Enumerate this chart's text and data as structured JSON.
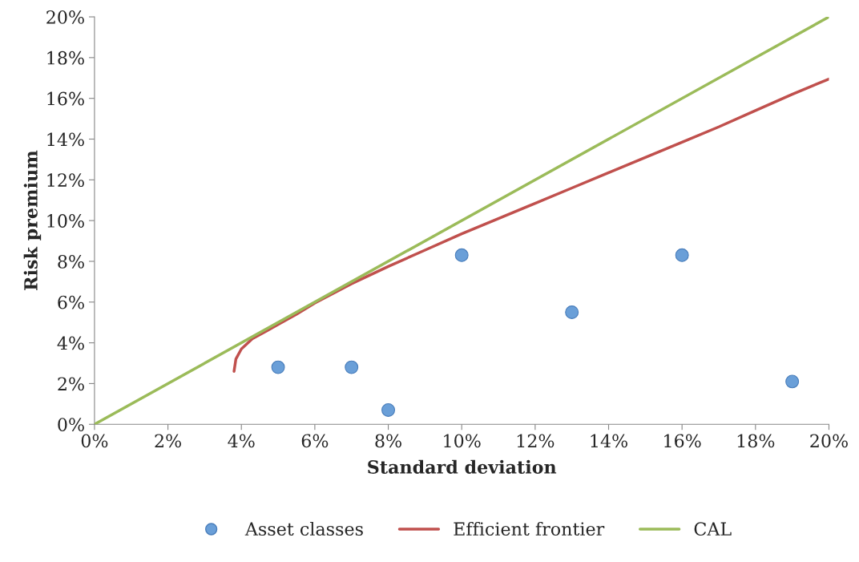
{
  "chart_data": {
    "type": "scatter",
    "xlabel": "Standard deviation",
    "ylabel": "Risk premium",
    "xlim": [
      0,
      20
    ],
    "ylim": [
      0,
      20
    ],
    "xticks": [
      {
        "value": 0,
        "label": "0%"
      },
      {
        "value": 2,
        "label": "2%"
      },
      {
        "value": 4,
        "label": "4%"
      },
      {
        "value": 6,
        "label": "6%"
      },
      {
        "value": 8,
        "label": "8%"
      },
      {
        "value": 10,
        "label": "10%"
      },
      {
        "value": 12,
        "label": "12%"
      },
      {
        "value": 14,
        "label": "14%"
      },
      {
        "value": 16,
        "label": "16%"
      },
      {
        "value": 18,
        "label": "18%"
      },
      {
        "value": 20,
        "label": "20%"
      }
    ],
    "yticks": [
      {
        "value": 0,
        "label": "0%"
      },
      {
        "value": 2,
        "label": "2%"
      },
      {
        "value": 4,
        "label": "4%"
      },
      {
        "value": 6,
        "label": "6%"
      },
      {
        "value": 8,
        "label": "8%"
      },
      {
        "value": 10,
        "label": "10%"
      },
      {
        "value": 12,
        "label": "12%"
      },
      {
        "value": 14,
        "label": "14%"
      },
      {
        "value": 16,
        "label": "16%"
      },
      {
        "value": 18,
        "label": "18%"
      },
      {
        "value": 20,
        "label": "20%"
      }
    ],
    "grid": false,
    "legend": "bottom",
    "series": [
      {
        "name": "Asset classes",
        "marker": "circle",
        "color": "#6a9fd8",
        "x": [
          5,
          7,
          8,
          10,
          13,
          16,
          19
        ],
        "values": [
          2.8,
          2.8,
          0.7,
          8.3,
          5.5,
          8.3,
          2.1
        ]
      },
      {
        "name": "Efficient frontier",
        "type": "line",
        "color": "#c0504d",
        "x": [
          3.8,
          3.85,
          4.0,
          4.3,
          4.7,
          5.0,
          5.5,
          6,
          7,
          8,
          9,
          10,
          11,
          12,
          13,
          14,
          15,
          16,
          17,
          18,
          19,
          20
        ],
        "values": [
          2.6,
          3.2,
          3.7,
          4.2,
          4.6,
          4.9,
          5.4,
          5.95,
          6.9,
          7.75,
          8.55,
          9.35,
          10.1,
          10.85,
          11.6,
          12.35,
          13.1,
          13.85,
          14.6,
          15.4,
          16.2,
          16.95
        ]
      },
      {
        "name": "CAL",
        "type": "line",
        "color": "#9bbb59",
        "x": [
          0,
          20
        ],
        "values": [
          0,
          20
        ]
      }
    ]
  }
}
